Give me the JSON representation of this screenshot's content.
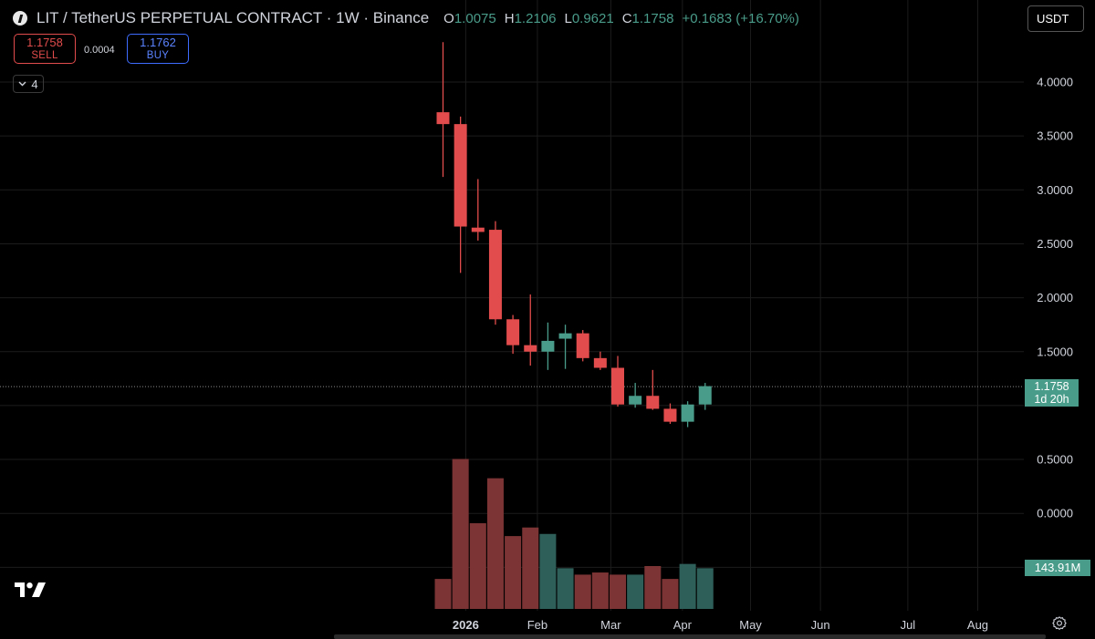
{
  "header": {
    "symbol": "LIT / TetherUS PERPETUAL CONTRACT · 1W · Binance",
    "ohlc": {
      "o_key": "O",
      "o": "1.0075",
      "h_key": "H",
      "h": "1.2106",
      "l_key": "L",
      "l": "0.9621",
      "c_key": "C",
      "c": "1.1758",
      "change": "+0.1683 (+16.70%)"
    }
  },
  "trade": {
    "sell_price": "1.1758",
    "sell_label": "SELL",
    "spread": "0.0004",
    "buy_price": "1.1762",
    "buy_label": "BUY"
  },
  "indicators": {
    "count": "4"
  },
  "currency": {
    "label": "USDT"
  },
  "price_label": {
    "price": "1.1758",
    "countdown": "1d 20h"
  },
  "volume_label": "143.91M",
  "colors": {
    "up": "#4a9c8a",
    "down": "#e24c4c",
    "up_volume": "#2f5f59",
    "down_volume": "#7d3434",
    "background": "#000000",
    "grid": "#1c1c1c"
  },
  "chart_data": {
    "type": "candlestick",
    "interval": "1W",
    "y_ticks": [
      "4.0000",
      "3.5000",
      "3.0000",
      "2.5000",
      "2.0000",
      "1.5000",
      "0.5000",
      "0.0000"
    ],
    "y_range": [
      -0.9,
      4.45
    ],
    "x_labels": [
      {
        "label": "2026",
        "bold": true
      },
      {
        "label": "Feb",
        "bold": false
      },
      {
        "label": "Mar",
        "bold": false
      },
      {
        "label": "Apr",
        "bold": false
      },
      {
        "label": "May",
        "bold": false
      },
      {
        "label": "Jun",
        "bold": false
      },
      {
        "label": "Jul",
        "bold": false
      },
      {
        "label": "Aug",
        "bold": false
      }
    ],
    "x_label_week_index": [
      1.3,
      5.4,
      9.6,
      13.7,
      17.6,
      21.6,
      26.6,
      30.6
    ],
    "candles": [
      {
        "o": 3.72,
        "h": 4.37,
        "l": 3.12,
        "c": 3.61,
        "v": 0.14
      },
      {
        "o": 3.61,
        "h": 3.68,
        "l": 2.23,
        "c": 2.66,
        "v": 0.7
      },
      {
        "o": 2.65,
        "h": 3.1,
        "l": 2.53,
        "c": 2.61,
        "v": 0.4
      },
      {
        "o": 2.63,
        "h": 2.71,
        "l": 1.75,
        "c": 1.8,
        "v": 0.61
      },
      {
        "o": 1.8,
        "h": 1.84,
        "l": 1.48,
        "c": 1.56,
        "v": 0.34
      },
      {
        "o": 1.56,
        "h": 2.03,
        "l": 1.37,
        "c": 1.5,
        "v": 0.38
      },
      {
        "o": 1.5,
        "h": 1.77,
        "l": 1.33,
        "c": 1.6,
        "v": 0.35
      },
      {
        "o": 1.62,
        "h": 1.75,
        "l": 1.34,
        "c": 1.67,
        "v": 0.19
      },
      {
        "o": 1.67,
        "h": 1.7,
        "l": 1.41,
        "c": 1.44,
        "v": 0.16
      },
      {
        "o": 1.44,
        "h": 1.5,
        "l": 1.33,
        "c": 1.35,
        "v": 0.17
      },
      {
        "o": 1.35,
        "h": 1.46,
        "l": 0.99,
        "c": 1.01,
        "v": 0.16
      },
      {
        "o": 1.01,
        "h": 1.21,
        "l": 0.98,
        "c": 1.09,
        "v": 0.16
      },
      {
        "o": 1.09,
        "h": 1.33,
        "l": 0.96,
        "c": 0.97,
        "v": 0.2
      },
      {
        "o": 0.97,
        "h": 1.02,
        "l": 0.83,
        "c": 0.85,
        "v": 0.14
      },
      {
        "o": 0.85,
        "h": 1.04,
        "l": 0.8,
        "c": 1.01,
        "v": 0.21
      },
      {
        "o": 1.01,
        "h": 1.21,
        "l": 0.96,
        "c": 1.18,
        "v": 0.19
      }
    ],
    "last_price": 1.1758
  }
}
